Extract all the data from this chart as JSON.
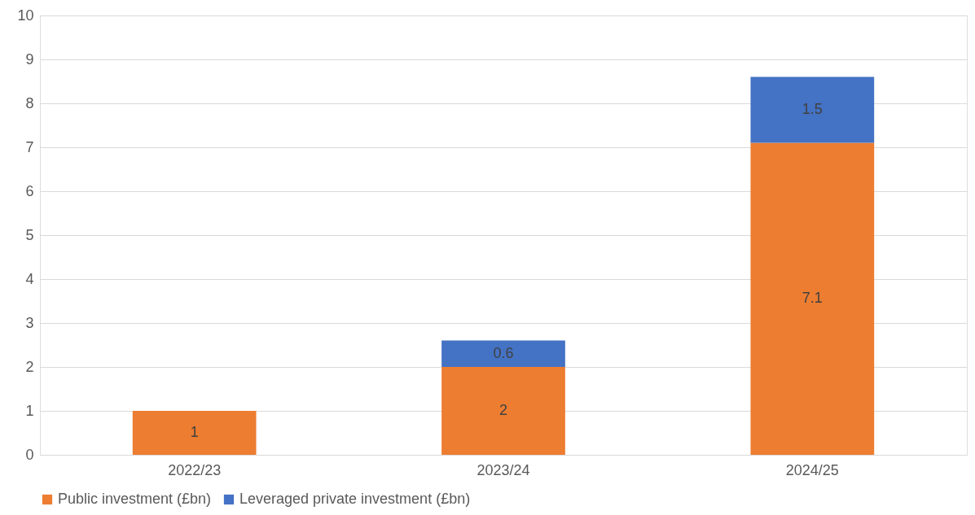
{
  "chart_data": {
    "type": "bar",
    "stacked": true,
    "categories": [
      "2022/23",
      "2023/24",
      "2024/25"
    ],
    "series": [
      {
        "name": "Public investment (£bn)",
        "color": "#ed7d31",
        "values": [
          1,
          2,
          7.1
        ]
      },
      {
        "name": "Leveraged private investment (£bn)",
        "color": "#4472c4",
        "values": [
          null,
          0.6,
          1.5
        ]
      }
    ],
    "ylim": [
      0,
      10
    ],
    "yticks": [
      0,
      1,
      2,
      3,
      4,
      5,
      6,
      7,
      8,
      9,
      10
    ],
    "grid": "y",
    "legend": "bottom",
    "data_labels": true
  }
}
